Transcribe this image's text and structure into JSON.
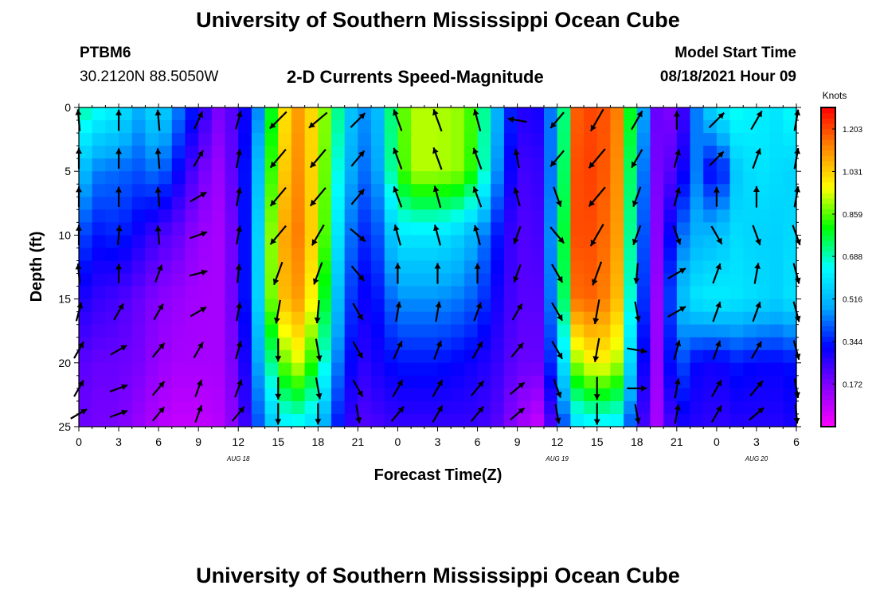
{
  "page": {
    "title_top": "University of Southern Mississippi Ocean Cube",
    "title_bottom": "University of Southern Mississippi Ocean Cube",
    "station_id": "PTBM6",
    "station_coords": "30.2120N  88.5050W",
    "plot_subtitle": "2-D Currents Speed-Magnitude",
    "model_start_label": "Model Start Time",
    "model_start_value": "08/18/2021 Hour 09"
  },
  "chart_data": {
    "type": "heatmap",
    "title": "2-D Currents Speed-Magnitude",
    "xlabel": "Forecast Time(Z)",
    "ylabel": "Depth (ft)",
    "x_range_hours": [
      0,
      54
    ],
    "x_ticks": [
      "0",
      "3",
      "6",
      "9",
      "12",
      "15",
      "18",
      "21",
      "0",
      "3",
      "6",
      "9",
      "12",
      "15",
      "18",
      "21",
      "0",
      "3",
      "6"
    ],
    "date_labels": [
      {
        "text": "AUG 18",
        "at_hour": 12
      },
      {
        "text": "AUG 19",
        "at_hour": 36
      },
      {
        "text": "AUG 20",
        "at_hour": 51
      }
    ],
    "ylim": [
      0,
      25
    ],
    "y_inverted": true,
    "y_ticks": [
      "0",
      "5",
      "10",
      "15",
      "20",
      "25"
    ],
    "colorbar": {
      "unit": "Knots",
      "min": 0.0,
      "max": 1.29,
      "tick_labels": [
        "1.203",
        "1.031",
        "0.859",
        "0.688",
        "0.516",
        "0.344",
        "0.172"
      ],
      "tick_values": [
        1.203,
        1.031,
        0.859,
        0.688,
        0.516,
        0.344,
        0.172
      ],
      "colors": [
        "#ff00ff",
        "#8800ff",
        "#0000ff",
        "#00aaff",
        "#00ffff",
        "#00ff00",
        "#ffff00",
        "#ff8800",
        "#ff0000"
      ]
    },
    "speed_grid_depths_ft": [
      0,
      5,
      10,
      15,
      20,
      25
    ],
    "speed_grid_hours": [
      0,
      1.5,
      3,
      4.5,
      6,
      7.5,
      9,
      10.5,
      12,
      13.5,
      15,
      16.5,
      18,
      19.5,
      21,
      22.5,
      24,
      25.5,
      27,
      28.5,
      30,
      31.5,
      33,
      34.5,
      36,
      37.5,
      39,
      40.5,
      42,
      43.5,
      45,
      46.5,
      48,
      49.5,
      51,
      52.5,
      54
    ],
    "speed_grid_knots": [
      [
        0.72,
        0.66,
        0.62,
        0.5,
        0.6,
        0.44,
        0.3,
        0.18,
        0.24,
        0.45,
        0.96,
        1.1,
        0.98,
        0.72,
        0.44,
        0.52,
        0.84,
        0.92,
        0.92,
        0.9,
        0.82,
        0.5,
        0.28,
        0.3,
        0.5,
        1.18,
        1.22,
        1.14,
        0.62,
        0.2,
        0.16,
        0.44,
        0.62,
        0.66,
        0.62,
        0.6,
        0.66
      ],
      [
        0.54,
        0.44,
        0.42,
        0.4,
        0.44,
        0.32,
        0.2,
        0.14,
        0.24,
        0.52,
        1.0,
        1.12,
        0.98,
        0.66,
        0.4,
        0.48,
        0.82,
        0.92,
        0.92,
        0.9,
        0.8,
        0.46,
        0.24,
        0.26,
        0.52,
        1.2,
        1.22,
        1.12,
        0.56,
        0.18,
        0.24,
        0.44,
        0.26,
        0.54,
        0.6,
        0.58,
        0.56
      ],
      [
        0.4,
        0.34,
        0.36,
        0.3,
        0.24,
        0.2,
        0.14,
        0.12,
        0.22,
        0.56,
        1.06,
        1.14,
        0.98,
        0.6,
        0.34,
        0.4,
        0.6,
        0.6,
        0.6,
        0.56,
        0.48,
        0.34,
        0.22,
        0.24,
        0.56,
        1.2,
        1.2,
        1.1,
        0.52,
        0.16,
        0.4,
        0.5,
        0.52,
        0.58,
        0.56,
        0.56,
        0.58
      ],
      [
        0.3,
        0.26,
        0.24,
        0.2,
        0.16,
        0.14,
        0.12,
        0.12,
        0.22,
        0.56,
        1.04,
        1.1,
        0.92,
        0.52,
        0.3,
        0.34,
        0.46,
        0.46,
        0.46,
        0.44,
        0.4,
        0.3,
        0.22,
        0.22,
        0.54,
        1.16,
        1.18,
        1.06,
        0.48,
        0.14,
        0.5,
        0.6,
        0.62,
        0.6,
        0.58,
        0.56,
        0.6
      ],
      [
        0.22,
        0.2,
        0.2,
        0.18,
        0.14,
        0.12,
        0.12,
        0.12,
        0.2,
        0.48,
        0.84,
        0.94,
        0.78,
        0.44,
        0.26,
        0.3,
        0.34,
        0.34,
        0.34,
        0.32,
        0.3,
        0.26,
        0.2,
        0.2,
        0.44,
        0.9,
        1.0,
        0.92,
        0.4,
        0.14,
        0.42,
        0.32,
        0.3,
        0.34,
        0.32,
        0.32,
        0.34
      ],
      [
        0.2,
        0.18,
        0.18,
        0.14,
        0.1,
        0.08,
        0.08,
        0.1,
        0.18,
        0.4,
        0.6,
        0.62,
        0.56,
        0.34,
        0.22,
        0.24,
        0.26,
        0.26,
        0.26,
        0.26,
        0.26,
        0.22,
        0.14,
        0.08,
        0.3,
        0.58,
        0.62,
        0.6,
        0.3,
        0.12,
        0.3,
        0.28,
        0.26,
        0.28,
        0.28,
        0.28,
        0.3
      ]
    ],
    "vector_field": {
      "columns_hours": [
        0,
        3,
        6,
        9,
        12,
        15,
        18,
        21,
        24,
        27,
        30,
        33,
        36,
        39,
        42,
        45,
        48,
        51,
        54
      ],
      "rows_depth_ft": [
        1,
        4,
        7,
        10,
        13,
        16,
        19,
        22,
        24
      ],
      "direction_deg": [
        [
          355,
          0,
          355,
          25,
          15,
          225,
          230,
          45,
          340,
          340,
          345,
          280,
          220,
          210,
          30,
          0,
          45,
          30,
          10
        ],
        [
          360,
          0,
          355,
          30,
          10,
          220,
          220,
          40,
          340,
          340,
          340,
          350,
          220,
          220,
          210,
          15,
          45,
          20,
          10
        ],
        [
          360,
          0,
          355,
          60,
          10,
          220,
          220,
          40,
          340,
          345,
          340,
          345,
          160,
          220,
          200,
          15,
          0,
          0,
          10
        ],
        [
          360,
          5,
          355,
          70,
          10,
          220,
          210,
          130,
          345,
          345,
          345,
          200,
          140,
          210,
          200,
          160,
          150,
          160,
          160
        ],
        [
          355,
          0,
          20,
          75,
          5,
          200,
          200,
          140,
          360,
          360,
          360,
          200,
          150,
          200,
          185,
          60,
          20,
          10,
          165
        ],
        [
          15,
          30,
          30,
          60,
          10,
          190,
          185,
          150,
          10,
          10,
          20,
          30,
          150,
          190,
          170,
          60,
          20,
          20,
          165
        ],
        [
          30,
          60,
          40,
          30,
          15,
          180,
          170,
          150,
          25,
          20,
          30,
          40,
          150,
          190,
          100,
          15,
          20,
          30,
          165
        ],
        [
          30,
          70,
          40,
          20,
          20,
          180,
          170,
          150,
          30,
          30,
          40,
          50,
          160,
          180,
          90,
          10,
          30,
          40,
          170
        ],
        [
          60,
          70,
          40,
          20,
          40,
          180,
          180,
          170,
          40,
          30,
          40,
          50,
          170,
          180,
          170,
          10,
          30,
          50,
          175
        ]
      ]
    }
  }
}
